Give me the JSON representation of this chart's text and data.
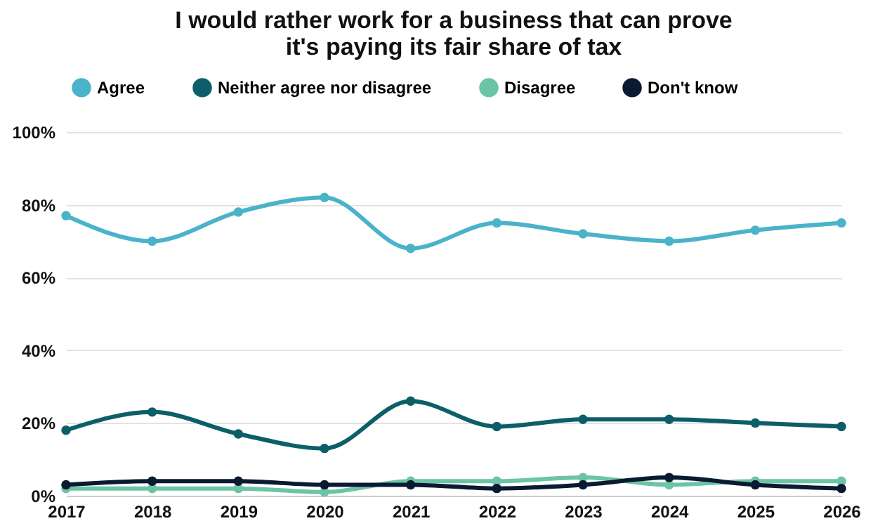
{
  "chart_data": {
    "type": "line",
    "title": "I would rather work for a business that can prove it's paying its fair share of tax",
    "categories": [
      "2017",
      "2018",
      "2019",
      "2020",
      "2021",
      "2022",
      "2023",
      "2024",
      "2025",
      "2026"
    ],
    "series": [
      {
        "name": "Agree",
        "color": "#4bb3c9",
        "values": [
          77,
          70,
          78,
          82,
          68,
          75,
          72,
          70,
          73,
          75
        ]
      },
      {
        "name": "Neither agree nor disagree",
        "color": "#0c5f68",
        "values": [
          18,
          23,
          17,
          13,
          26,
          19,
          21,
          21,
          20,
          19
        ]
      },
      {
        "name": "Disagree",
        "color": "#6cc4a7",
        "values": [
          2,
          2,
          2,
          1,
          4,
          4,
          5,
          3,
          4,
          4
        ]
      },
      {
        "name": "Don't know",
        "color": "#0b1a33",
        "values": [
          3,
          4,
          4,
          3,
          3,
          2,
          3,
          5,
          3,
          2
        ]
      }
    ],
    "ylim": [
      0,
      100
    ],
    "yticks": [
      {
        "value": 0,
        "label": "0%"
      },
      {
        "value": 20,
        "label": "20%"
      },
      {
        "value": 40,
        "label": "40%"
      },
      {
        "value": 60,
        "label": "60%"
      },
      {
        "value": 80,
        "label": "80%"
      },
      {
        "value": 100,
        "label": "100%"
      }
    ],
    "grid": "y",
    "legend": "top",
    "marker": "circle",
    "line_style": "solid"
  }
}
